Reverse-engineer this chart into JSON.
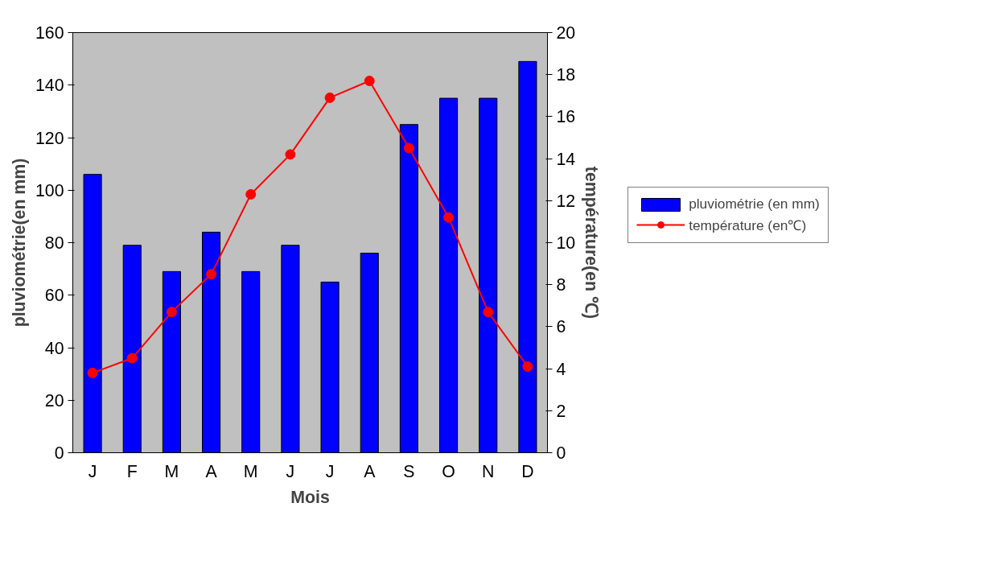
{
  "chart_data": {
    "type": "bar",
    "xlabel": "Mois",
    "ylabel": "pluviométrie(en mm)",
    "y2label": "température(en ℃)",
    "categories": [
      "J",
      "F",
      "M",
      "A",
      "M",
      "J",
      "J",
      "A",
      "S",
      "O",
      "N",
      "D"
    ],
    "series": [
      {
        "name": "pluviométrie (en mm)",
        "color": "#0000ff",
        "values": [
          106,
          79,
          69,
          84,
          69,
          79,
          65,
          76,
          125,
          135,
          135,
          149
        ]
      },
      {
        "name": "température (en℃)",
        "type": "line",
        "axis": "y2",
        "color": "#ff0000",
        "marker": "circle",
        "values": [
          3.8,
          4.5,
          6.7,
          8.5,
          12.3,
          14.2,
          16.9,
          17.7,
          14.5,
          11.2,
          6.7,
          4.1
        ]
      }
    ],
    "ylim": [
      0,
      160
    ],
    "yticks": [
      0,
      20,
      40,
      60,
      80,
      100,
      120,
      140,
      160
    ],
    "y2lim": [
      0,
      20
    ],
    "y2ticks": [
      0,
      2,
      4,
      6,
      8,
      10,
      12,
      14,
      16,
      18,
      20
    ],
    "grid": false,
    "legend": "right"
  }
}
